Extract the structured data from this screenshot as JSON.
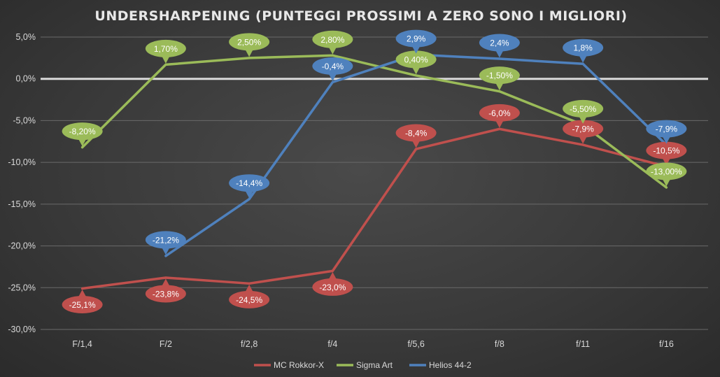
{
  "chart_data": {
    "type": "line",
    "title": "UNDERSHARPENING (PUNTEGGI PROSSIMI A ZERO SONO I MIGLIORI)",
    "xlabel": "",
    "ylabel": "",
    "categories": [
      "F/1,4",
      "F/2",
      "f/2,8",
      "f/4",
      "f/5,6",
      "f/8",
      "f/11",
      "f/16"
    ],
    "ylim": [
      -30,
      5
    ],
    "yticks": [
      "5,0%",
      "0,0%",
      "-5,0%",
      "-10,0%",
      "-15,0%",
      "-20,0%",
      "-25,0%",
      "-30,0%"
    ],
    "ytick_values": [
      5,
      0,
      -5,
      -10,
      -15,
      -20,
      -25,
      -30
    ],
    "grid": true,
    "legend_position": "bottom",
    "series": [
      {
        "name": "MC Rokkor-X",
        "color": "#c0504d",
        "values": [
          -25.1,
          -23.8,
          -24.5,
          -23.0,
          -8.4,
          -6.0,
          -7.9,
          -10.5
        ],
        "labels": [
          "-25,1%",
          "-23,8%",
          "-24,5%",
          "-23,0%",
          "-8,4%",
          "-6,0%",
          "-7,9%",
          "-10,5%"
        ]
      },
      {
        "name": "Sigma Art",
        "color": "#9bbb59",
        "values": [
          -8.2,
          1.7,
          2.5,
          2.8,
          0.4,
          -1.5,
          -5.5,
          -13.0
        ],
        "labels": [
          "-8,20%",
          "1,70%",
          "2,50%",
          "2,80%",
          "0,40%",
          "-1,50%",
          "-5,50%",
          "-13,00%"
        ]
      },
      {
        "name": "Helios 44-2",
        "color": "#4f81bd",
        "values": [
          null,
          -21.2,
          -14.4,
          -0.4,
          2.9,
          2.4,
          1.8,
          -7.9
        ],
        "labels": [
          null,
          "-21,2%",
          "-14,4%",
          "-0,4%",
          "2,9%",
          "2,4%",
          "1,8%",
          "-7,9%"
        ]
      }
    ]
  }
}
